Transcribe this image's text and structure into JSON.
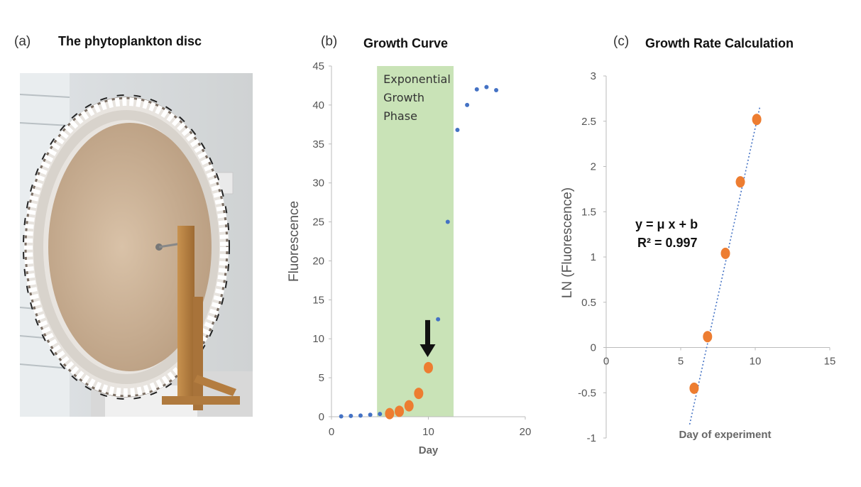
{
  "panels": {
    "a": {
      "label": "(a)",
      "title": "The phytoplankton disc"
    },
    "b": {
      "label": "(b)",
      "title": "Growth Curve"
    },
    "c": {
      "label": "(c)",
      "title": "Growth Rate Calculation"
    }
  },
  "chart_data": [
    {
      "type": "scatter",
      "title": "Growth Curve",
      "xlabel": "Day",
      "ylabel": "Fluorescence",
      "xlim": [
        0,
        20
      ],
      "ylim": [
        0,
        45
      ],
      "xticks": [
        0,
        10,
        20
      ],
      "yticks": [
        0,
        5,
        10,
        15,
        20,
        25,
        30,
        35,
        40,
        45
      ],
      "shaded_region": {
        "x_start": 4.7,
        "x_end": 12.6,
        "label_lines": [
          "Exponential",
          "Growth",
          "Phase"
        ],
        "color": "#c9e3b7"
      },
      "arrow": {
        "x": 10,
        "y_from": 12.4,
        "y_to": 8.2
      },
      "series": [
        {
          "color": "#4472c4",
          "marker": "small",
          "x": [
            1,
            2,
            3,
            4,
            5,
            11,
            12,
            13,
            14,
            15,
            16,
            17
          ],
          "y": [
            0.05,
            0.1,
            0.15,
            0.25,
            0.35,
            12.5,
            25.0,
            36.8,
            40.0,
            42.0,
            42.3,
            41.9
          ]
        },
        {
          "color": "#ed7d31",
          "marker": "large",
          "x": [
            6,
            7,
            8,
            9,
            10
          ],
          "y": [
            0.4,
            0.7,
            1.4,
            3.0,
            6.3
          ]
        }
      ]
    },
    {
      "type": "scatter",
      "title": "Growth Rate Calculation",
      "xlabel": "Day of experiment",
      "ylabel": "LN (Fluorescence)",
      "xlim": [
        0,
        15
      ],
      "ylim": [
        -1,
        3
      ],
      "xticks": [
        0,
        5,
        10,
        15
      ],
      "yticks": [
        -1,
        -0.5,
        0,
        0.5,
        1,
        1.5,
        2,
        2.5,
        3
      ],
      "equation": "y = μ x + b",
      "r_squared": "R² = 0.997",
      "trendline": {
        "color": "#4472c4",
        "x": [
          5.6,
          10.3
        ],
        "y": [
          -0.85,
          2.65
        ]
      },
      "series": [
        {
          "color": "#ed7d31",
          "x": [
            5.9,
            6.8,
            8.0,
            9.0,
            10.1
          ],
          "y": [
            -0.45,
            0.12,
            1.04,
            1.83,
            2.52
          ]
        }
      ]
    }
  ]
}
